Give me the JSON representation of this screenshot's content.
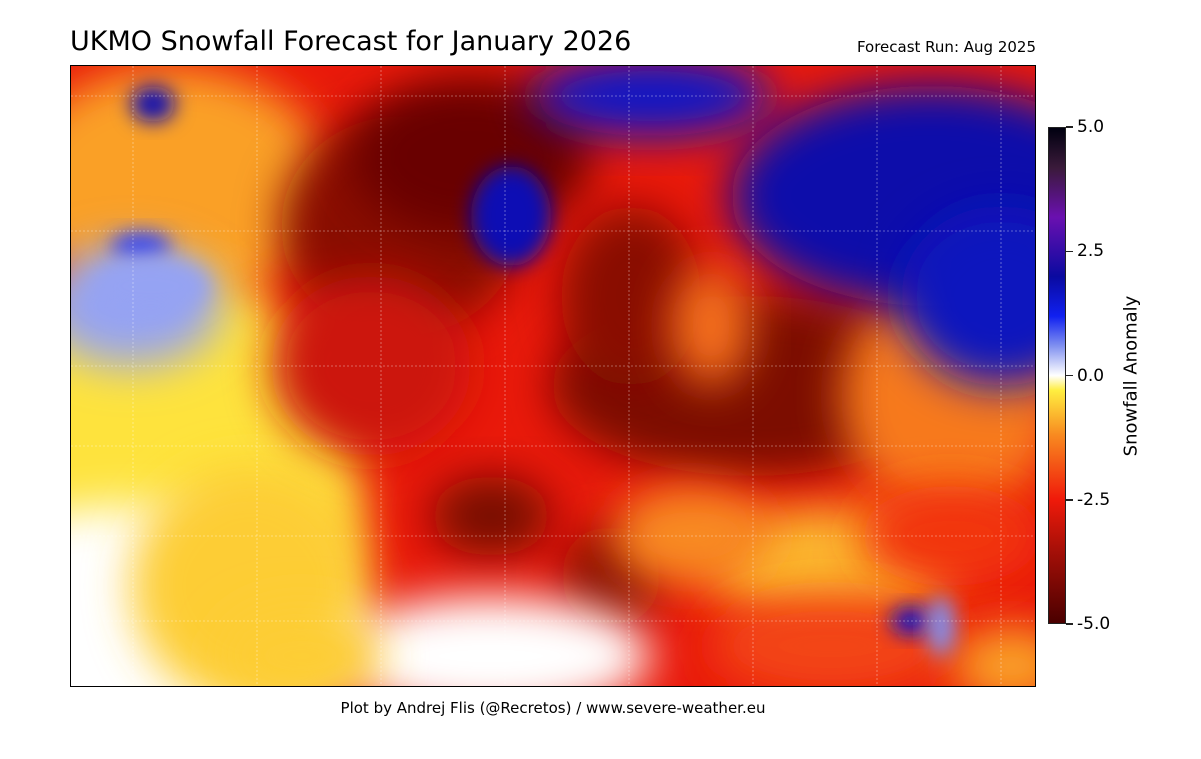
{
  "title": "UKMO Snowfall Forecast for January 2026",
  "forecast_run": "Forecast Run: Aug 2025",
  "credit": "Plot by Andrej Flis (@Recretos) / www.severe-weather.eu",
  "colorbar": {
    "label": "Snowfall Anomaly",
    "range": [
      -5.0,
      5.0
    ],
    "ticks": [
      {
        "value": 5.0,
        "label": "5.0"
      },
      {
        "value": 2.5,
        "label": "2.5"
      },
      {
        "value": 0.0,
        "label": "0.0"
      },
      {
        "value": -2.5,
        "label": "-2.5"
      },
      {
        "value": -5.0,
        "label": "-5.0"
      }
    ],
    "colormap": [
      {
        "value": -5.0,
        "color": "#4a0000"
      },
      {
        "value": -3.5,
        "color": "#a81008"
      },
      {
        "value": -2.5,
        "color": "#f01a0a"
      },
      {
        "value": -1.2,
        "color": "#f88a20"
      },
      {
        "value": -0.3,
        "color": "#ffee40"
      },
      {
        "value": 0.0,
        "color": "#ffffff"
      },
      {
        "value": 0.6,
        "color": "#8090f0"
      },
      {
        "value": 1.2,
        "color": "#1020f0"
      },
      {
        "value": 2.0,
        "color": "#0a0aa0"
      },
      {
        "value": 3.2,
        "color": "#6a10b0"
      },
      {
        "value": 4.2,
        "color": "#3a1a3a"
      },
      {
        "value": 5.0,
        "color": "#000010"
      }
    ]
  },
  "map": {
    "region": "Europe",
    "grid": true,
    "chart_type": "heatmap"
  }
}
